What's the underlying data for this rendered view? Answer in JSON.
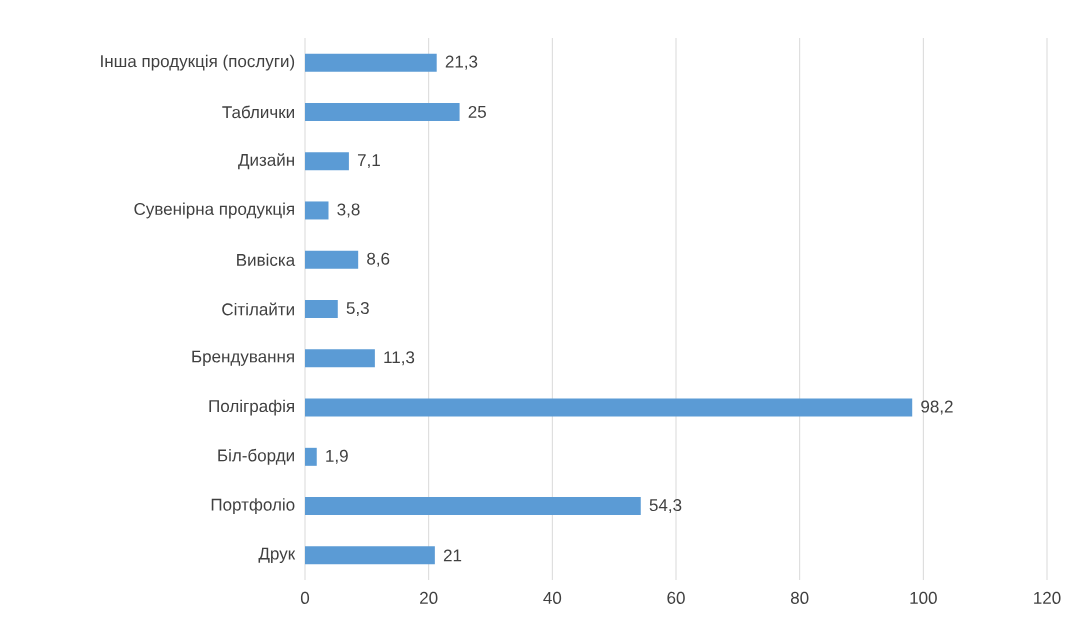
{
  "chart_data": {
    "type": "bar",
    "orientation": "horizontal",
    "categories": [
      "Інша продукція (послуги)",
      "Таблички",
      "Дизайн",
      "Сувенірна продукція",
      "Вивіска",
      "Сітілайти",
      "Брендування",
      "Поліграфія",
      "Біл-борди",
      "Портфоліо",
      "Друк"
    ],
    "values": [
      21.3,
      25,
      7.1,
      3.8,
      8.6,
      5.3,
      11.3,
      98.2,
      1.9,
      54.3,
      21
    ],
    "value_labels": [
      "21,3",
      "25",
      "7,1",
      "3,8",
      "8,6",
      "5,3",
      "11,3",
      "98,2",
      "1,9",
      "54,3",
      "21"
    ],
    "color": "#5b9bd5",
    "xlim": [
      0,
      120
    ],
    "xticks": [
      0,
      20,
      40,
      60,
      80,
      100,
      120
    ],
    "grid": "x"
  }
}
